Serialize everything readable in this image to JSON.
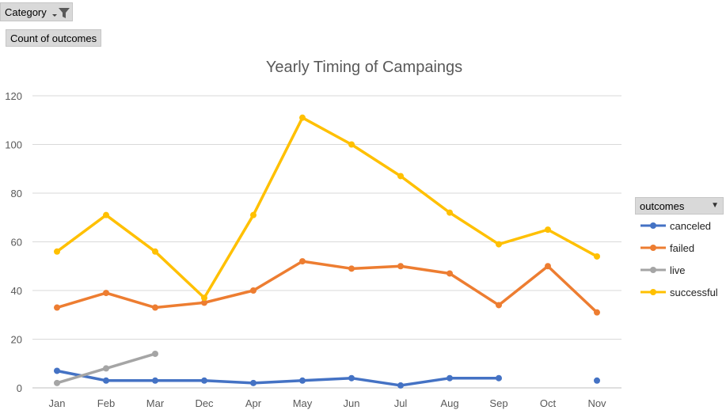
{
  "filters": {
    "category_label": "Category",
    "values_label": "Count of outcomes"
  },
  "icons": {
    "filter": "filter-funnel-icon",
    "dropdown": "dropdown-arrow-icon"
  },
  "chart_data": {
    "type": "line",
    "title": "Yearly Timing of Campaings",
    "xlabel": "",
    "ylabel": "",
    "categories": [
      "Jan",
      "Feb",
      "Mar",
      "Dec",
      "Apr",
      "May",
      "Jun",
      "Jul",
      "Aug",
      "Sep",
      "Oct",
      "Nov"
    ],
    "ylim": [
      0,
      120
    ],
    "yticks": [
      0,
      20,
      40,
      60,
      80,
      100,
      120
    ],
    "grid": true,
    "legend": {
      "title": "outcomes",
      "position": "right",
      "entries": [
        "canceled",
        "failed",
        "live",
        "successful"
      ]
    },
    "series": [
      {
        "name": "canceled",
        "color": "#4472c4",
        "values": [
          7,
          3,
          3,
          3,
          2,
          3,
          4,
          1,
          4,
          4,
          null,
          3
        ]
      },
      {
        "name": "failed",
        "color": "#ed7d31",
        "values": [
          33,
          39,
          33,
          35,
          40,
          52,
          49,
          50,
          47,
          34,
          50,
          31
        ]
      },
      {
        "name": "live",
        "color": "#a5a5a5",
        "values": [
          2,
          8,
          14,
          null,
          null,
          null,
          null,
          null,
          null,
          null,
          null,
          null
        ]
      },
      {
        "name": "successful",
        "color": "#ffc000",
        "values": [
          56,
          71,
          56,
          37,
          71,
          111,
          100,
          87,
          72,
          59,
          65,
          54
        ]
      }
    ]
  }
}
